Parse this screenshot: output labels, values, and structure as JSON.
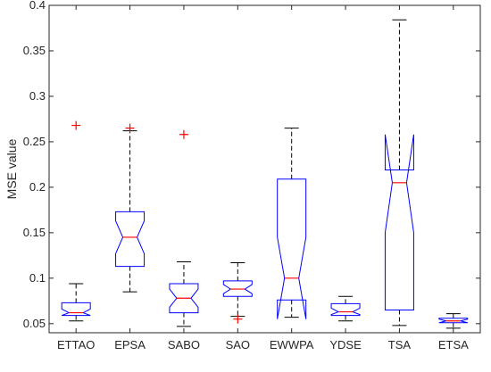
{
  "chart_data": {
    "type": "boxplot",
    "notched": true,
    "ylabel": "MSE value",
    "xlabel": "",
    "ylim": [
      0.04,
      0.4
    ],
    "yticks": [
      0.05,
      0.1,
      0.15,
      0.2,
      0.25,
      0.3,
      0.35,
      0.4
    ],
    "ytick_labels": [
      "0.05",
      "0.1",
      "0.15",
      "0.2",
      "0.25",
      "0.3",
      "0.35",
      "0.4"
    ],
    "categories": [
      "ETTAO",
      "EPSA",
      "SABO",
      "SAO",
      "EWWPA",
      "YDSE",
      "TSA",
      "ETSA"
    ],
    "colors": {
      "box": "#0000ff",
      "median": "#ff0000",
      "whisker": "#000000",
      "outlier": "#ff0000",
      "axis": "#262626"
    },
    "boxes": [
      {
        "whisker_low": 0.053,
        "q1": 0.059,
        "median": 0.062,
        "q3": 0.073,
        "whisker_high": 0.094,
        "notch_low": 0.059,
        "notch_high": 0.066,
        "outliers": [
          0.268
        ]
      },
      {
        "whisker_low": 0.085,
        "q1": 0.113,
        "median": 0.145,
        "q3": 0.173,
        "whisker_high": 0.262,
        "notch_low": 0.127,
        "notch_high": 0.163,
        "outliers": [
          0.265
        ]
      },
      {
        "whisker_low": 0.047,
        "q1": 0.062,
        "median": 0.078,
        "q3": 0.094,
        "whisker_high": 0.118,
        "notch_low": 0.068,
        "notch_high": 0.088,
        "outliers": [
          0.258
        ]
      },
      {
        "whisker_low": 0.058,
        "q1": 0.08,
        "median": 0.088,
        "q3": 0.097,
        "whisker_high": 0.117,
        "notch_low": 0.083,
        "notch_high": 0.093,
        "outliers": [
          0.055
        ]
      },
      {
        "whisker_low": 0.057,
        "q1": 0.076,
        "median": 0.1,
        "q3": 0.209,
        "whisker_high": 0.265,
        "notch_low": 0.055,
        "notch_high": 0.145,
        "outliers": []
      },
      {
        "whisker_low": 0.053,
        "q1": 0.059,
        "median": 0.063,
        "q3": 0.072,
        "whisker_high": 0.08,
        "notch_low": 0.06,
        "notch_high": 0.067,
        "outliers": []
      },
      {
        "whisker_low": 0.048,
        "q1": 0.065,
        "median": 0.205,
        "q3": 0.219,
        "whisker_high": 0.384,
        "notch_low": 0.15,
        "notch_high": 0.258,
        "outliers": []
      },
      {
        "whisker_low": 0.045,
        "q1": 0.051,
        "median": 0.053,
        "q3": 0.056,
        "whisker_high": 0.061,
        "notch_low": 0.051,
        "notch_high": 0.055,
        "outliers": []
      }
    ]
  }
}
